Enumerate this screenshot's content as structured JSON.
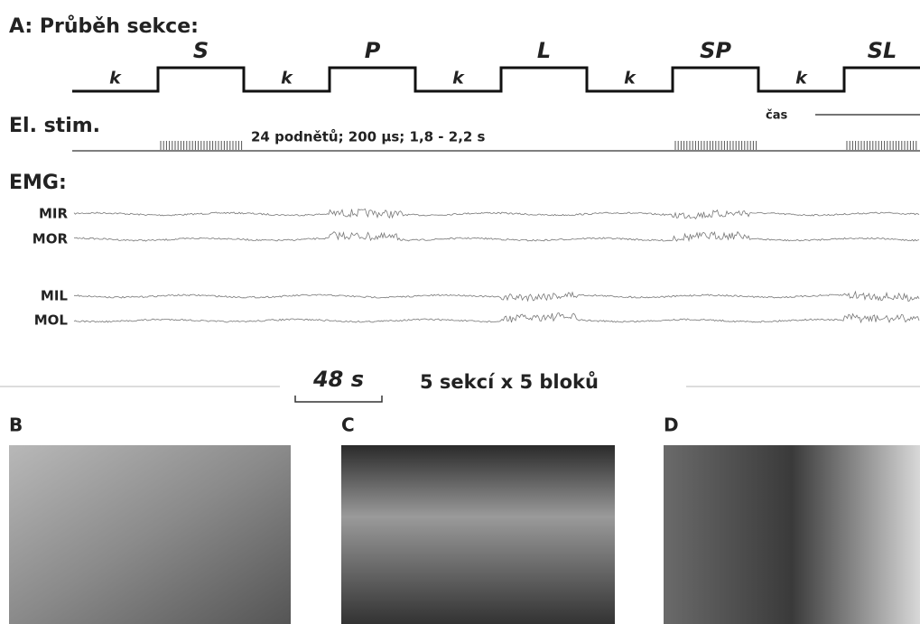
{
  "header": {
    "title": "A: Průběh sekce:"
  },
  "sections": [
    "k",
    "S",
    "k",
    "P",
    "k",
    "L",
    "k",
    "SP",
    "k",
    "SL"
  ],
  "stimulation": {
    "label": "El. stim.",
    "description": "24 podnětů; 200 µs; 1,8 - 2,2 s",
    "time_label": "čas"
  },
  "emg": {
    "label": "EMG:",
    "channels": [
      "MIR",
      "MOR",
      "MIL",
      "MOL"
    ]
  },
  "scale": {
    "label": "48 s",
    "note": "5 sekcí x 5 bloků"
  },
  "panels": [
    "B",
    "C",
    "D"
  ]
}
